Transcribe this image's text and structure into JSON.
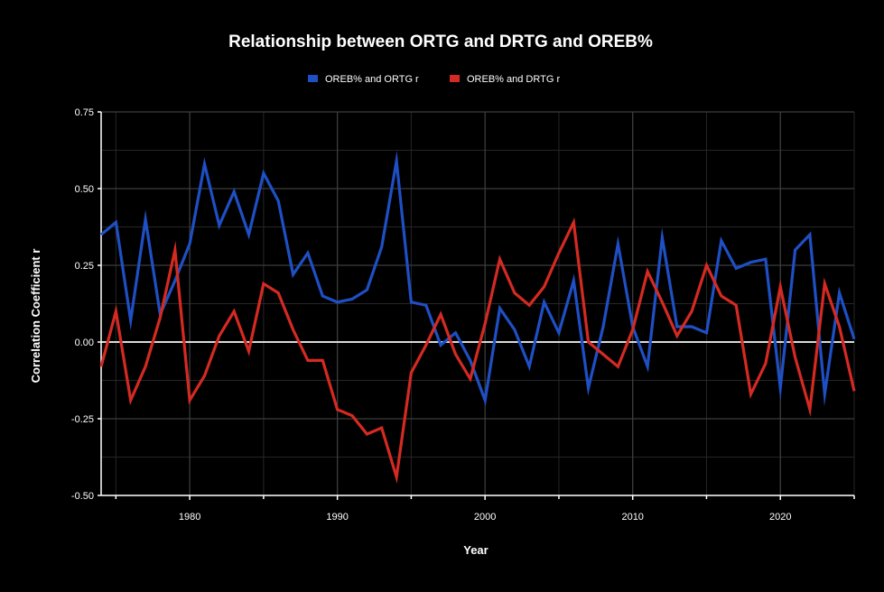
{
  "chart_data": {
    "type": "line",
    "title": "Relationship between ORTG and DRTG and OREB%",
    "xlabel": "Year",
    "ylabel": "Correlation Coefficient r",
    "xlim": [
      1974,
      2025
    ],
    "ylim": [
      -0.5,
      0.75
    ],
    "x_ticks": [
      1980,
      1990,
      2000,
      2010,
      2020
    ],
    "y_ticks": [
      -0.5,
      -0.25,
      0.0,
      0.25,
      0.5,
      0.75
    ],
    "y_tick_labels": [
      "-0.50",
      "-0.25",
      "0.00",
      "0.25",
      "0.50",
      "0.75"
    ],
    "grid": true,
    "zero_line": true,
    "legend_position": "top",
    "x": [
      1974,
      1975,
      1976,
      1977,
      1978,
      1979,
      1980,
      1981,
      1982,
      1983,
      1984,
      1985,
      1986,
      1987,
      1988,
      1989,
      1990,
      1991,
      1992,
      1993,
      1994,
      1995,
      1996,
      1997,
      1998,
      1999,
      2000,
      2001,
      2002,
      2003,
      2004,
      2005,
      2006,
      2007,
      2008,
      2009,
      2010,
      2011,
      2012,
      2013,
      2014,
      2015,
      2016,
      2017,
      2018,
      2019,
      2020,
      2021,
      2022,
      2023,
      2024,
      2025
    ],
    "series": [
      {
        "name": "OREB% and ORTG r",
        "color": "#1f4fc4",
        "values": [
          0.35,
          0.39,
          0.07,
          0.4,
          0.09,
          0.2,
          0.32,
          0.58,
          0.38,
          0.49,
          0.35,
          0.55,
          0.46,
          0.22,
          0.29,
          0.15,
          0.13,
          0.14,
          0.17,
          0.31,
          0.59,
          0.13,
          0.12,
          -0.01,
          0.03,
          -0.06,
          -0.19,
          0.11,
          0.04,
          -0.08,
          0.13,
          0.03,
          0.2,
          -0.15,
          0.05,
          0.32,
          0.05,
          -0.08,
          0.34,
          0.05,
          0.05,
          0.03,
          0.33,
          0.24,
          0.26,
          0.27,
          -0.15,
          0.3,
          0.35,
          -0.17,
          0.16,
          0.01
        ]
      },
      {
        "name": "OREB% and DRTG r",
        "color": "#d42a22",
        "values": [
          -0.08,
          0.1,
          -0.19,
          -0.08,
          0.08,
          0.3,
          -0.19,
          -0.11,
          0.02,
          0.1,
          -0.03,
          0.19,
          0.16,
          0.04,
          -0.06,
          -0.06,
          -0.22,
          -0.24,
          -0.3,
          -0.28,
          -0.44,
          -0.1,
          -0.01,
          0.09,
          -0.04,
          -0.12,
          0.06,
          0.27,
          0.16,
          0.12,
          0.18,
          0.29,
          0.39,
          0.0,
          -0.04,
          -0.08,
          0.04,
          0.23,
          0.13,
          0.02,
          0.1,
          0.25,
          0.15,
          0.12,
          -0.17,
          -0.07,
          0.18,
          -0.05,
          -0.22,
          0.19,
          0.05,
          -0.16
        ]
      }
    ]
  }
}
